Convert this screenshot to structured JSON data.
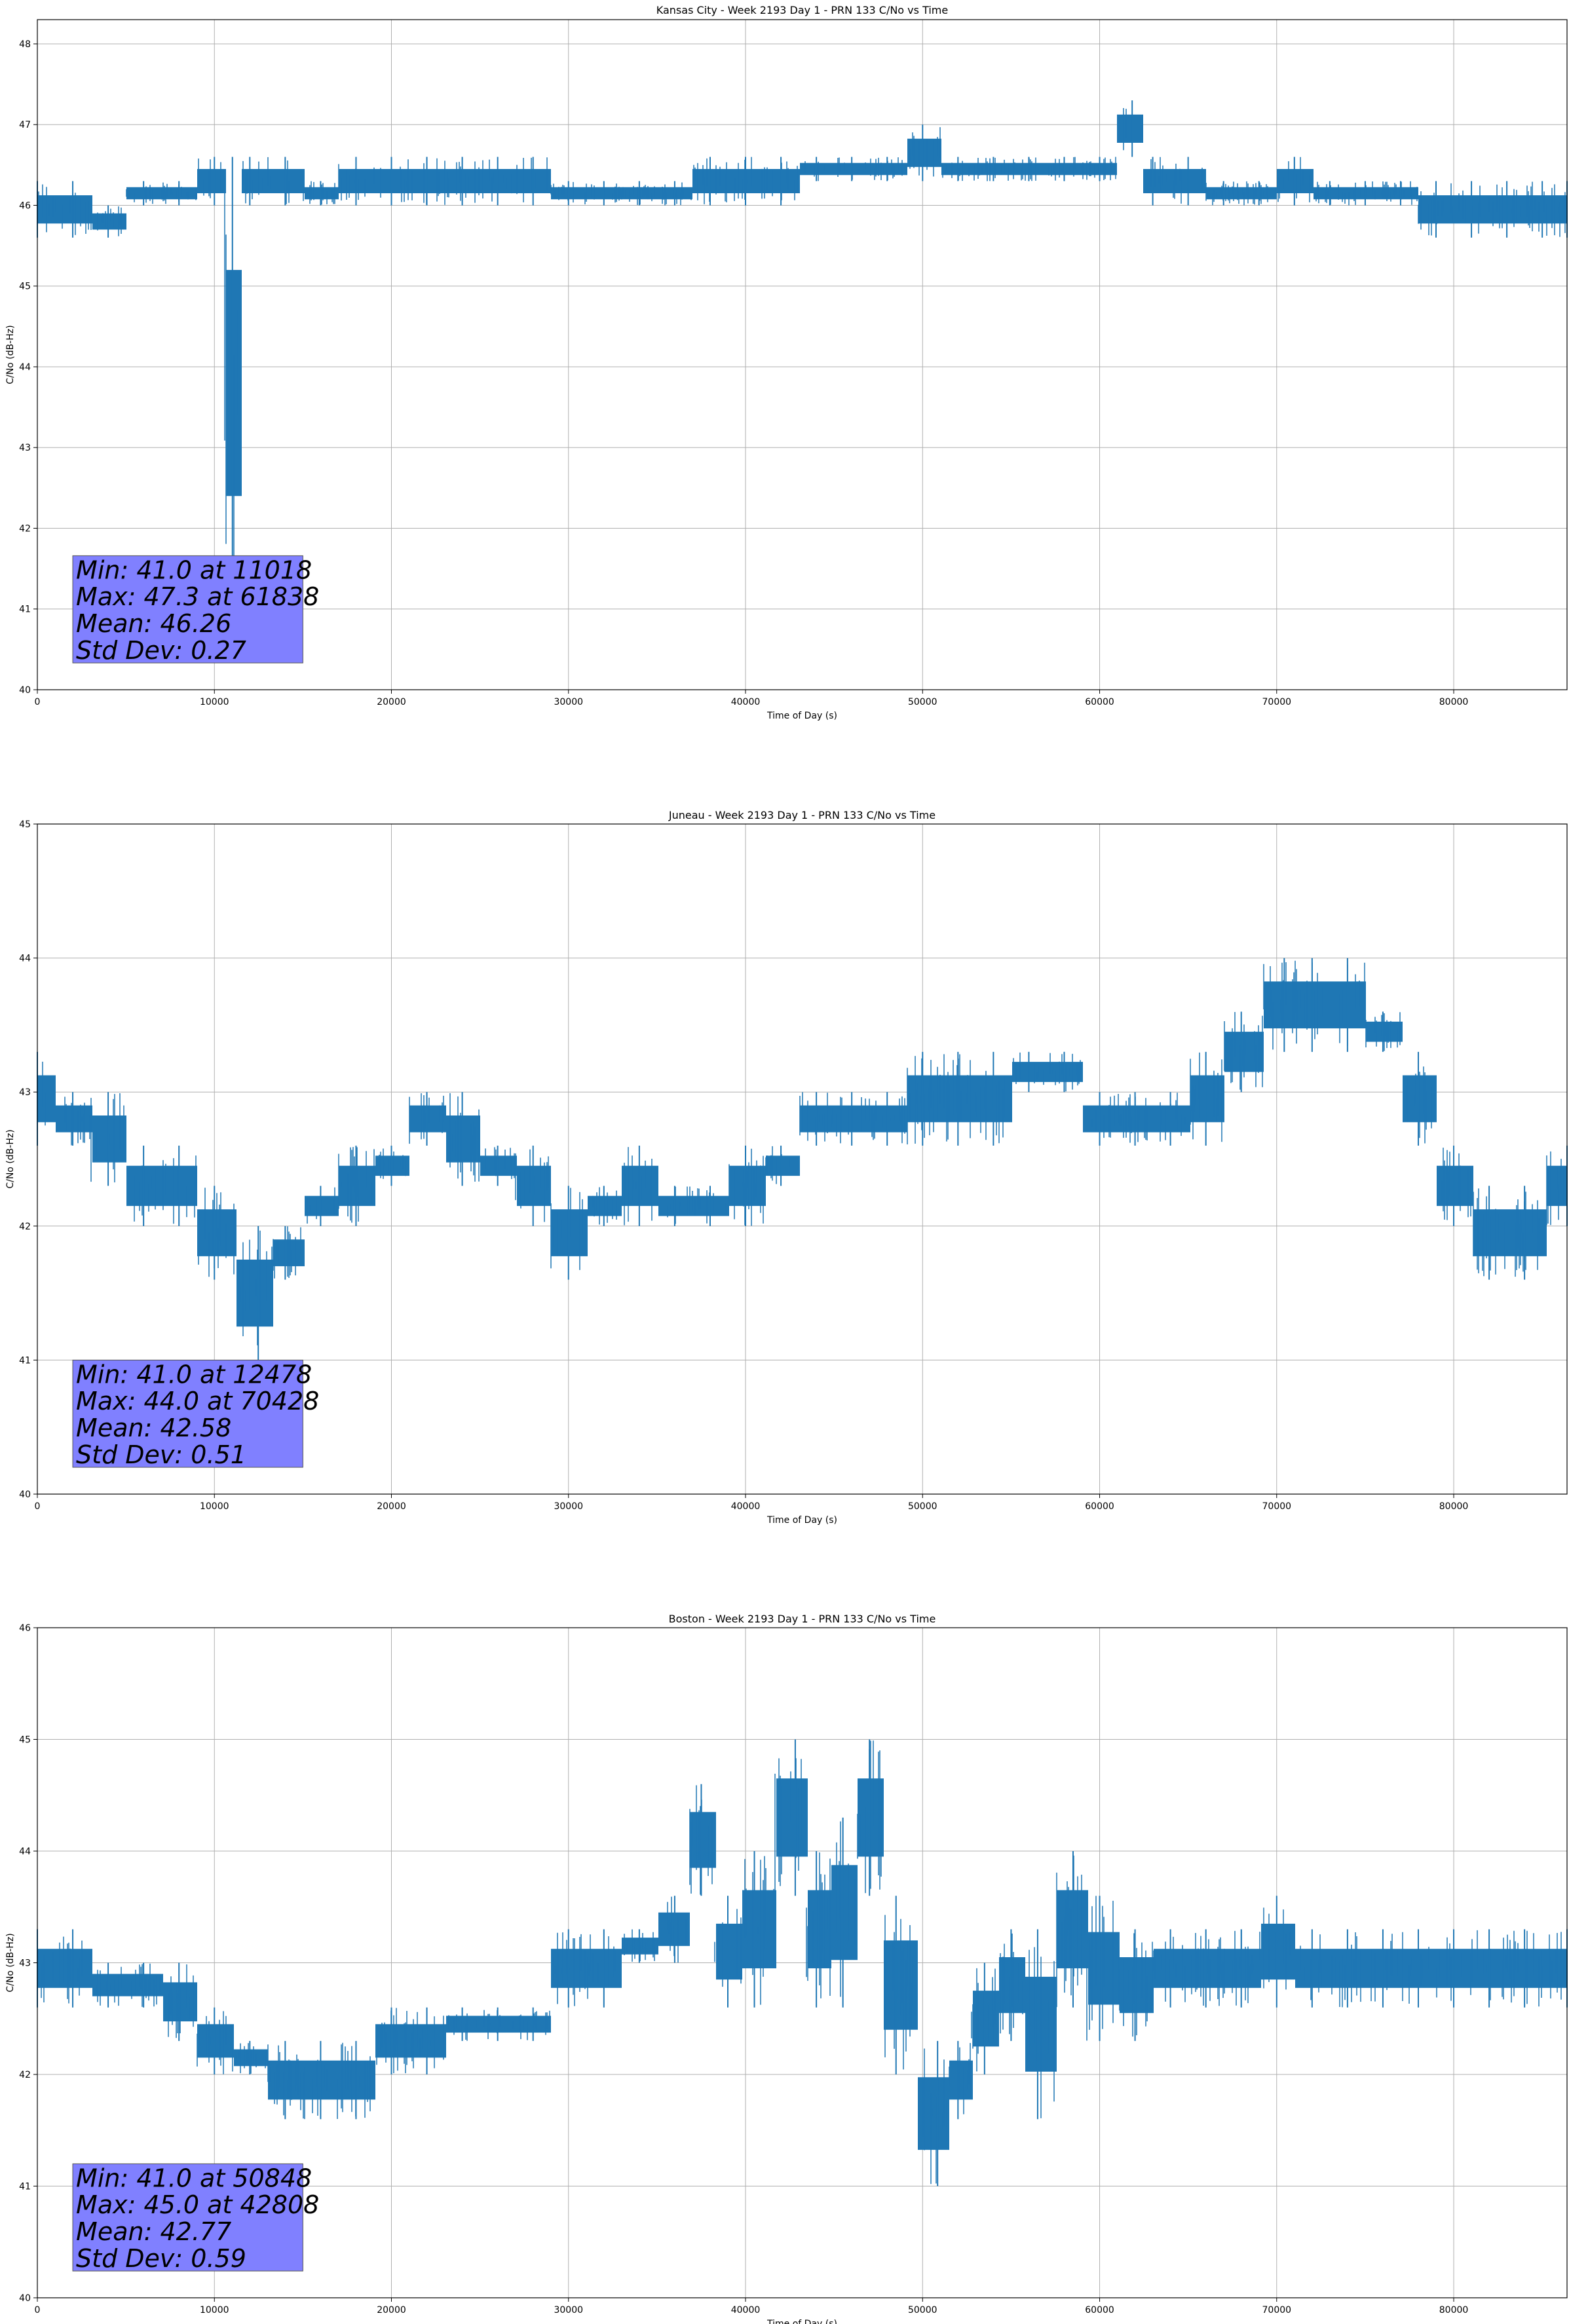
{
  "chart_data": [
    {
      "type": "line",
      "title": "Kansas City - Week 2193 Day 1 - PRN 133 C/No vs Time",
      "xlabel": "Time of Day (s)",
      "ylabel": "C/No (dB-Hz)",
      "xlim": [
        0,
        86400
      ],
      "ylim": [
        40,
        48.3
      ],
      "xticks": [
        0,
        10000,
        20000,
        30000,
        40000,
        50000,
        60000,
        70000,
        80000
      ],
      "yticks": [
        40,
        41,
        42,
        43,
        44,
        45,
        46,
        47,
        48
      ],
      "grid": true,
      "color": "#1f77b4",
      "series": [
        {
          "x": [
            0,
            2000,
            4000,
            6000,
            8000,
            10000,
            11018,
            12000,
            14000,
            16000,
            18000,
            20000,
            22000,
            24000,
            26000,
            28000,
            30000,
            32000,
            34000,
            36000,
            38000,
            40000,
            42000,
            44000,
            46000,
            48000,
            50000,
            52000,
            54000,
            56000,
            58000,
            60000,
            61838,
            63000,
            65000,
            67000,
            69000,
            71000,
            73000,
            75000,
            77000,
            79000,
            81000,
            83000,
            85000,
            86400
          ],
          "low": [
            45.6,
            45.6,
            45.6,
            46.0,
            46.0,
            46.0,
            41.0,
            46.0,
            46.0,
            46.0,
            46.0,
            46.0,
            46.0,
            46.0,
            46.0,
            46.0,
            46.0,
            46.0,
            46.0,
            46.0,
            46.0,
            46.0,
            46.0,
            46.3,
            46.3,
            46.3,
            46.3,
            46.3,
            46.3,
            46.3,
            46.3,
            46.3,
            46.6,
            46.0,
            46.0,
            46.0,
            46.0,
            46.0,
            46.0,
            46.0,
            46.0,
            45.6,
            45.6,
            45.6,
            45.6,
            45.6
          ],
          "high": [
            46.3,
            46.3,
            46.0,
            46.3,
            46.3,
            46.6,
            46.6,
            46.6,
            46.6,
            46.3,
            46.6,
            46.6,
            46.6,
            46.6,
            46.6,
            46.6,
            46.3,
            46.3,
            46.3,
            46.3,
            46.6,
            46.6,
            46.6,
            46.6,
            46.6,
            46.6,
            47.0,
            46.6,
            46.6,
            46.6,
            46.6,
            46.6,
            47.3,
            46.6,
            46.6,
            46.3,
            46.3,
            46.6,
            46.3,
            46.3,
            46.3,
            46.3,
            46.3,
            46.3,
            46.3,
            46.3
          ]
        }
      ],
      "stats": [
        "Min: 41.0 at 11018",
        "Max: 47.3 at 61838",
        "Mean: 46.26",
        "Std Dev: 0.27"
      ]
    },
    {
      "type": "line",
      "title": "Juneau - Week 2193 Day 1 - PRN 133 C/No vs Time",
      "xlabel": "Time of Day (s)",
      "ylabel": "C/No (dB-Hz)",
      "xlim": [
        0,
        86400
      ],
      "ylim": [
        40,
        45
      ],
      "xticks": [
        0,
        10000,
        20000,
        30000,
        40000,
        50000,
        60000,
        70000,
        80000
      ],
      "yticks": [
        40,
        41,
        42,
        43,
        44,
        45
      ],
      "grid": true,
      "color": "#1f77b4",
      "series": [
        {
          "x": [
            0,
            2000,
            4000,
            6000,
            8000,
            10000,
            12478,
            14000,
            16000,
            18000,
            20000,
            22000,
            24000,
            26000,
            28000,
            30000,
            32000,
            34000,
            36000,
            38000,
            40000,
            42000,
            44000,
            46000,
            48000,
            50000,
            52000,
            54000,
            56000,
            58000,
            60000,
            62000,
            64000,
            66000,
            68000,
            70428,
            72000,
            74000,
            76000,
            78000,
            80000,
            82000,
            84000,
            86400
          ],
          "low": [
            42.6,
            42.6,
            42.3,
            42.0,
            42.0,
            41.6,
            41.0,
            41.6,
            42.0,
            42.0,
            42.3,
            42.6,
            42.3,
            42.3,
            42.0,
            41.6,
            42.0,
            42.0,
            42.0,
            42.0,
            42.0,
            42.3,
            42.6,
            42.6,
            42.6,
            42.6,
            42.6,
            42.6,
            43.0,
            43.0,
            42.6,
            42.6,
            42.6,
            42.6,
            43.0,
            43.3,
            43.3,
            43.3,
            43.3,
            42.6,
            42.0,
            41.6,
            41.6,
            42.0
          ],
          "high": [
            43.3,
            43.0,
            43.0,
            42.6,
            42.6,
            42.3,
            42.0,
            42.0,
            42.3,
            42.6,
            42.6,
            43.0,
            43.0,
            42.6,
            42.6,
            42.3,
            42.3,
            42.6,
            42.3,
            42.3,
            42.6,
            42.6,
            43.0,
            43.0,
            43.0,
            43.3,
            43.3,
            43.3,
            43.3,
            43.3,
            43.0,
            43.0,
            43.0,
            43.3,
            43.6,
            44.0,
            44.0,
            44.0,
            43.6,
            43.3,
            42.6,
            42.3,
            42.3,
            42.6
          ]
        }
      ],
      "stats": [
        "Min: 41.0 at 12478",
        "Max: 44.0 at 70428",
        "Mean: 42.58",
        "Std Dev: 0.51"
      ]
    },
    {
      "type": "line",
      "title": "Boston - Week 2193 Day 1 - PRN 133 C/No vs Time",
      "xlabel": "Time of Day (s)",
      "ylabel": "C/No (dB-Hz)",
      "xlim": [
        0,
        86400
      ],
      "ylim": [
        40,
        46
      ],
      "xticks": [
        0,
        10000,
        20000,
        30000,
        40000,
        50000,
        60000,
        70000,
        80000
      ],
      "yticks": [
        40,
        41,
        42,
        43,
        44,
        45,
        46
      ],
      "grid": true,
      "color": "#1f77b4",
      "series": [
        {
          "x": [
            0,
            2000,
            4000,
            6000,
            8000,
            10000,
            12000,
            14000,
            16000,
            18000,
            20000,
            22000,
            24000,
            26000,
            28000,
            30000,
            32000,
            34000,
            36000,
            37500,
            39000,
            40500,
            42808,
            44000,
            45500,
            47000,
            48500,
            50848,
            52000,
            53500,
            55000,
            56500,
            58500,
            60000,
            62000,
            64000,
            66000,
            68000,
            70000,
            72000,
            74000,
            76000,
            78000,
            80000,
            82000,
            84000,
            86400
          ],
          "low": [
            42.6,
            42.6,
            42.6,
            42.6,
            42.3,
            42.0,
            42.0,
            41.6,
            41.6,
            41.6,
            42.0,
            42.0,
            42.3,
            42.3,
            42.3,
            42.6,
            42.6,
            43.0,
            43.0,
            43.6,
            42.6,
            42.6,
            43.6,
            42.6,
            42.6,
            43.6,
            42.0,
            41.0,
            41.6,
            42.0,
            42.3,
            41.6,
            42.6,
            42.3,
            42.3,
            42.6,
            42.6,
            42.6,
            42.6,
            42.6,
            42.6,
            42.6,
            42.6,
            42.6,
            42.6,
            42.6,
            42.6
          ],
          "high": [
            43.3,
            43.3,
            43.0,
            43.0,
            43.0,
            42.6,
            42.3,
            42.3,
            42.3,
            42.3,
            42.6,
            42.6,
            42.6,
            42.6,
            42.6,
            43.3,
            43.3,
            43.3,
            43.6,
            44.6,
            43.6,
            44.0,
            45.0,
            44.0,
            44.3,
            45.0,
            43.6,
            42.3,
            42.3,
            43.0,
            43.3,
            43.3,
            44.0,
            43.6,
            43.3,
            43.3,
            43.3,
            43.3,
            43.6,
            43.3,
            43.3,
            43.3,
            43.3,
            43.3,
            43.3,
            43.3,
            43.3
          ]
        }
      ],
      "stats": [
        "Min: 41.0 at 50848",
        "Max: 45.0 at 42808",
        "Mean: 42.77",
        "Std Dev: 0.59"
      ]
    }
  ],
  "stats_box": {
    "face": "#8080ff",
    "edge": "#555555"
  }
}
